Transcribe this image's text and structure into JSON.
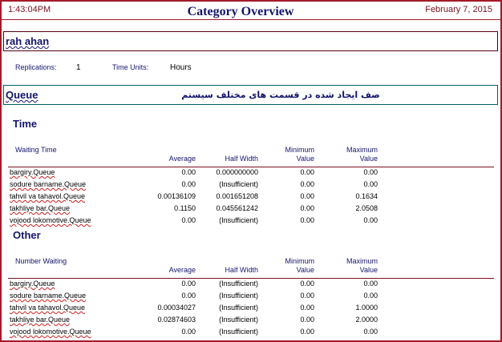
{
  "header": {
    "time": "1:43:04PM",
    "title": "Category Overview",
    "date": "February 7, 2015"
  },
  "model": "rah ahan",
  "run": {
    "replications_label": "Replications:",
    "replications": "1",
    "time_units_label": "Time Units:",
    "time_units": "Hours"
  },
  "section": {
    "title": "Queue",
    "description": "صف ایجاد شده در قسمت های مختلف سیستم"
  },
  "groups": [
    {
      "heading": "Time",
      "table": {
        "label": "Waiting Time",
        "columns": [
          "Average",
          "Half Width",
          "Minimum Value",
          "Maximum Value"
        ],
        "rows": [
          [
            "bargiry.Queue",
            "0.00",
            "0.000000000",
            "0.00",
            "0.00"
          ],
          [
            "sodure barname.Queue",
            "0.00",
            "(Insufficient)",
            "0.00",
            "0.00"
          ],
          [
            "tahvil va tahavol.Queue",
            "0.00136109",
            "0.001651208",
            "0.00",
            "0.1634"
          ],
          [
            "takhliye bar.Queue",
            "0.1150",
            "0.045561242",
            "0.00",
            "2.0508"
          ],
          [
            "vojood lokomotive.Queue",
            "0.00",
            "(Insufficient)",
            "0.00",
            "0.00"
          ]
        ]
      }
    },
    {
      "heading": "Other",
      "table": {
        "label": "Number Waiting",
        "columns": [
          "Average",
          "Half Width",
          "Minimum Value",
          "Maximum Value"
        ],
        "rows": [
          [
            "bargiry.Queue",
            "0.00",
            "(Insufficient)",
            "0.00",
            "0.00"
          ],
          [
            "sodure barname.Queue",
            "0.00",
            "(Insufficient)",
            "0.00",
            "0.00"
          ],
          [
            "tahvil va tahavol.Queue",
            "0.00034027",
            "(Insufficient)",
            "0.00",
            "1.0000"
          ],
          [
            "takhliye bar.Queue",
            "0.02874603",
            "(Insufficient)",
            "0.00",
            "2.0000"
          ],
          [
            "vojood lokomotive.Queue",
            "0.00",
            "(Insufficient)",
            "0.00",
            "0.00"
          ]
        ]
      }
    }
  ]
}
